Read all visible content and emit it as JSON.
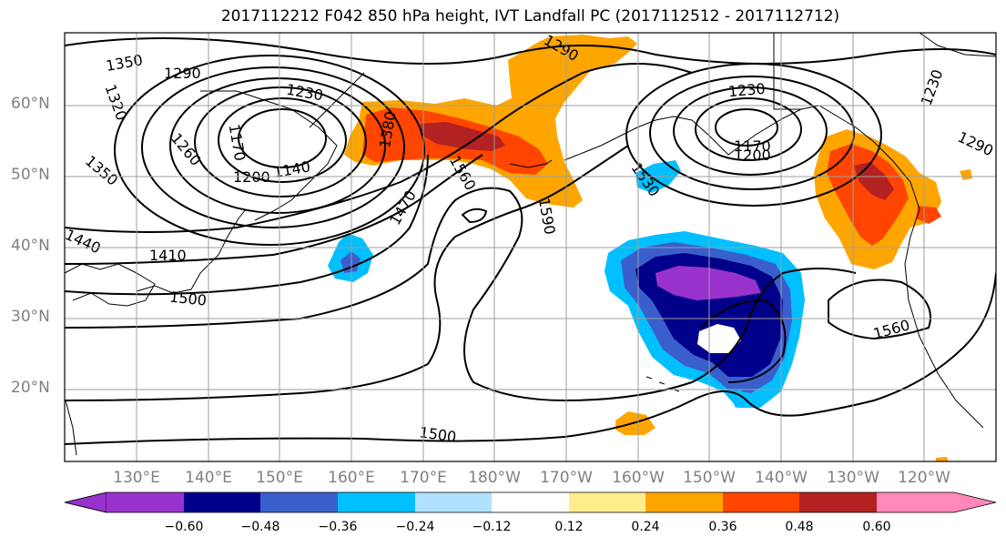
{
  "title": "2017112212 F042 850 hPa height, IVT Landfall PC (2017112512 - 2017112712)",
  "lat_labels": [
    "60°N",
    "50°N",
    "40°N",
    "30°N",
    "20°N"
  ],
  "lon_labels": [
    "130°E",
    "140°E",
    "150°E",
    "160°E",
    "170°E",
    "180°W",
    "170°W",
    "160°W",
    "150°W",
    "140°W",
    "130°W",
    "120°W"
  ],
  "colorbar": {
    "ticks": [
      "−0.60",
      "−0.48",
      "−0.36",
      "−0.24",
      "−0.12",
      "0.12",
      "0.24",
      "0.36",
      "0.48",
      "0.60"
    ],
    "colors": [
      "#9932CC",
      "#00008B",
      "#3A5FCD",
      "#00BFFF",
      "#B0E2FF",
      "#FFFFFF",
      "#FFEC8B",
      "#FFA500",
      "#FF4500",
      "#B22222",
      "#FF88B8"
    ]
  },
  "contour_labels": [
    "1350",
    "1290",
    "1320",
    "1230",
    "1170",
    "1260",
    "1200",
    "1140",
    "1380",
    "1350",
    "1440",
    "1410",
    "1500",
    "1470",
    "1560",
    "1590",
    "1530",
    "1230",
    "1170",
    "1200",
    "1290",
    "1230",
    "1560",
    "1500",
    "1290"
  ],
  "colors": {
    "gridline": "#9E9E9E",
    "axis_label": "#808080",
    "contour": "#000000"
  }
}
